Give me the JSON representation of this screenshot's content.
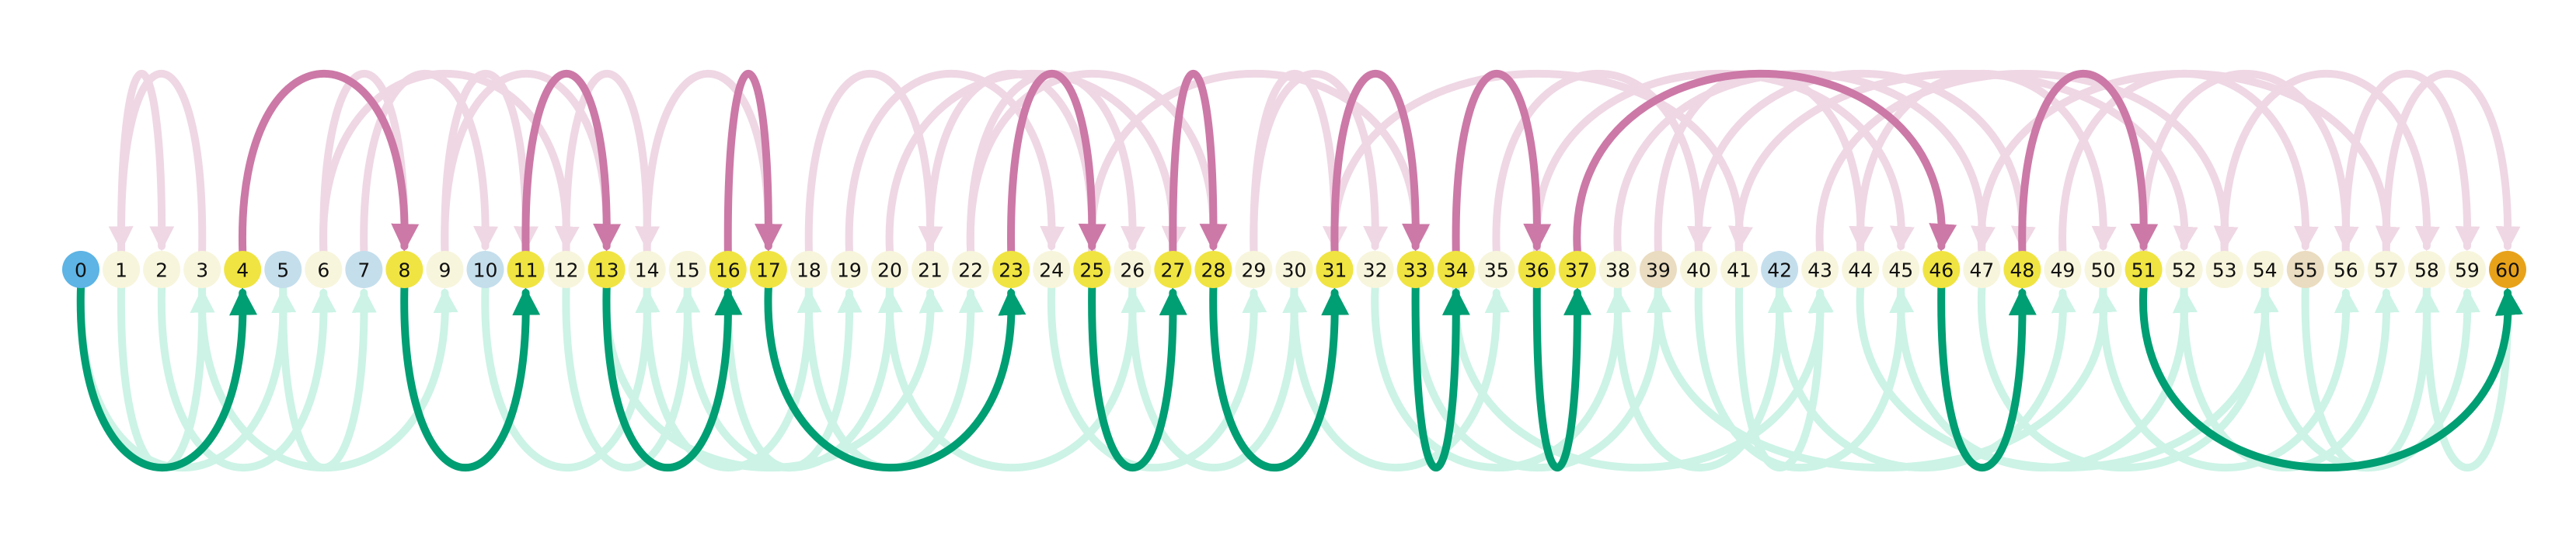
{
  "diagram": {
    "type": "arc-diagram",
    "nodes": [
      {
        "label": "0",
        "style": "start"
      },
      {
        "label": "1",
        "style": "plain"
      },
      {
        "label": "2",
        "style": "plain"
      },
      {
        "label": "3",
        "style": "plain"
      },
      {
        "label": "4",
        "style": "path"
      },
      {
        "label": "5",
        "style": "blue"
      },
      {
        "label": "6",
        "style": "plain"
      },
      {
        "label": "7",
        "style": "blue"
      },
      {
        "label": "8",
        "style": "path"
      },
      {
        "label": "9",
        "style": "plain"
      },
      {
        "label": "10",
        "style": "blue"
      },
      {
        "label": "11",
        "style": "path"
      },
      {
        "label": "12",
        "style": "plain"
      },
      {
        "label": "13",
        "style": "path"
      },
      {
        "label": "14",
        "style": "plain"
      },
      {
        "label": "15",
        "style": "plain"
      },
      {
        "label": "16",
        "style": "path"
      },
      {
        "label": "17",
        "style": "path"
      },
      {
        "label": "18",
        "style": "plain"
      },
      {
        "label": "19",
        "style": "plain"
      },
      {
        "label": "20",
        "style": "plain"
      },
      {
        "label": "21",
        "style": "plain"
      },
      {
        "label": "22",
        "style": "plain"
      },
      {
        "label": "23",
        "style": "path"
      },
      {
        "label": "24",
        "style": "plain"
      },
      {
        "label": "25",
        "style": "path"
      },
      {
        "label": "26",
        "style": "plain"
      },
      {
        "label": "27",
        "style": "path"
      },
      {
        "label": "28",
        "style": "path"
      },
      {
        "label": "29",
        "style": "plain"
      },
      {
        "label": "30",
        "style": "plain"
      },
      {
        "label": "31",
        "style": "path"
      },
      {
        "label": "32",
        "style": "plain"
      },
      {
        "label": "33",
        "style": "path"
      },
      {
        "label": "34",
        "style": "path"
      },
      {
        "label": "35",
        "style": "plain"
      },
      {
        "label": "36",
        "style": "path"
      },
      {
        "label": "37",
        "style": "path"
      },
      {
        "label": "38",
        "style": "plain"
      },
      {
        "label": "39",
        "style": "tan"
      },
      {
        "label": "40",
        "style": "plain"
      },
      {
        "label": "41",
        "style": "plain"
      },
      {
        "label": "42",
        "style": "blue"
      },
      {
        "label": "43",
        "style": "plain"
      },
      {
        "label": "44",
        "style": "plain"
      },
      {
        "label": "45",
        "style": "plain"
      },
      {
        "label": "46",
        "style": "path"
      },
      {
        "label": "47",
        "style": "plain"
      },
      {
        "label": "48",
        "style": "path"
      },
      {
        "label": "49",
        "style": "plain"
      },
      {
        "label": "50",
        "style": "plain"
      },
      {
        "label": "51",
        "style": "path"
      },
      {
        "label": "52",
        "style": "plain"
      },
      {
        "label": "53",
        "style": "plain"
      },
      {
        "label": "54",
        "style": "plain"
      },
      {
        "label": "55",
        "style": "tan"
      },
      {
        "label": "56",
        "style": "plain"
      },
      {
        "label": "57",
        "style": "plain"
      },
      {
        "label": "58",
        "style": "plain"
      },
      {
        "label": "59",
        "style": "plain"
      },
      {
        "label": "60",
        "style": "end"
      }
    ],
    "node_colors": {
      "start": "#5DB4E5",
      "end": "#E8A21A",
      "path": "#F0E442",
      "plain": "#F7F5DC",
      "blue": "#C4DEEC",
      "tan": "#EADCC0"
    },
    "edge_colors": {
      "path_above": "#CC79A7",
      "path_below": "#009E73",
      "bg_above": "#EFD7E4",
      "bg_below": "#CCF3E6"
    },
    "highlighted_edges": [
      {
        "from": 0,
        "to": 4,
        "side": "below"
      },
      {
        "from": 4,
        "to": 8,
        "side": "above"
      },
      {
        "from": 8,
        "to": 11,
        "side": "below"
      },
      {
        "from": 11,
        "to": 13,
        "side": "above"
      },
      {
        "from": 13,
        "to": 16,
        "side": "below"
      },
      {
        "from": 16,
        "to": 17,
        "side": "above"
      },
      {
        "from": 17,
        "to": 23,
        "side": "below"
      },
      {
        "from": 23,
        "to": 25,
        "side": "above"
      },
      {
        "from": 25,
        "to": 27,
        "side": "below"
      },
      {
        "from": 27,
        "to": 28,
        "side": "above"
      },
      {
        "from": 28,
        "to": 31,
        "side": "below"
      },
      {
        "from": 31,
        "to": 33,
        "side": "above"
      },
      {
        "from": 33,
        "to": 34,
        "side": "below"
      },
      {
        "from": 34,
        "to": 36,
        "side": "above"
      },
      {
        "from": 36,
        "to": 37,
        "side": "below"
      },
      {
        "from": 37,
        "to": 46,
        "side": "above"
      },
      {
        "from": 46,
        "to": 48,
        "side": "below"
      },
      {
        "from": 48,
        "to": 51,
        "side": "above"
      },
      {
        "from": 51,
        "to": 60,
        "side": "below"
      }
    ],
    "background_edges": [
      {
        "from": 1,
        "to": 3,
        "side": "below"
      },
      {
        "from": 0,
        "to": 5,
        "side": "below"
      },
      {
        "from": 1,
        "to": 2,
        "side": "above"
      },
      {
        "from": 3,
        "to": 1,
        "side": "above"
      },
      {
        "from": 2,
        "to": 6,
        "side": "below"
      },
      {
        "from": 5,
        "to": 7,
        "side": "below"
      },
      {
        "from": 3,
        "to": 9,
        "side": "below"
      },
      {
        "from": 6,
        "to": 8,
        "side": "above"
      },
      {
        "from": 7,
        "to": 10,
        "side": "above"
      },
      {
        "from": 9,
        "to": 11,
        "side": "above"
      },
      {
        "from": 6,
        "to": 12,
        "side": "above"
      },
      {
        "from": 9,
        "to": 13,
        "side": "above"
      },
      {
        "from": 10,
        "to": 14,
        "side": "below"
      },
      {
        "from": 12,
        "to": 15,
        "side": "below"
      },
      {
        "from": 12,
        "to": 14,
        "side": "above"
      },
      {
        "from": 14,
        "to": 18,
        "side": "below"
      },
      {
        "from": 15,
        "to": 20,
        "side": "below"
      },
      {
        "from": 14,
        "to": 17,
        "side": "above"
      },
      {
        "from": 16,
        "to": 19,
        "side": "below"
      },
      {
        "from": 18,
        "to": 21,
        "side": "above"
      },
      {
        "from": 18,
        "to": 22,
        "side": "below"
      },
      {
        "from": 19,
        "to": 24,
        "side": "above"
      },
      {
        "from": 20,
        "to": 26,
        "side": "below"
      },
      {
        "from": 21,
        "to": 25,
        "side": "above"
      },
      {
        "from": 22,
        "to": 26,
        "side": "above"
      },
      {
        "from": 24,
        "to": 29,
        "side": "below"
      },
      {
        "from": 22,
        "to": 28,
        "side": "above"
      },
      {
        "from": 26,
        "to": 30,
        "side": "below"
      },
      {
        "from": 29,
        "to": 32,
        "side": "above"
      },
      {
        "from": 29,
        "to": 31,
        "side": "above"
      },
      {
        "from": 30,
        "to": 35,
        "side": "below"
      },
      {
        "from": 32,
        "to": 38,
        "side": "below"
      },
      {
        "from": 35,
        "to": 40,
        "side": "above"
      },
      {
        "from": 38,
        "to": 42,
        "side": "below"
      },
      {
        "from": 39,
        "to": 44,
        "side": "above"
      },
      {
        "from": 40,
        "to": 45,
        "side": "below"
      },
      {
        "from": 41,
        "to": 43,
        "side": "below"
      },
      {
        "from": 38,
        "to": 47,
        "side": "above"
      },
      {
        "from": 42,
        "to": 49,
        "side": "below"
      },
      {
        "from": 44,
        "to": 50,
        "side": "above"
      },
      {
        "from": 45,
        "to": 52,
        "side": "below"
      },
      {
        "from": 43,
        "to": 53,
        "side": "above"
      },
      {
        "from": 47,
        "to": 54,
        "side": "below"
      },
      {
        "from": 49,
        "to": 55,
        "side": "above"
      },
      {
        "from": 50,
        "to": 56,
        "side": "below"
      },
      {
        "from": 52,
        "to": 57,
        "side": "below"
      },
      {
        "from": 53,
        "to": 58,
        "side": "above"
      },
      {
        "from": 54,
        "to": 59,
        "side": "below"
      },
      {
        "from": 55,
        "to": 58,
        "side": "below"
      },
      {
        "from": 56,
        "to": 59,
        "side": "above"
      },
      {
        "from": 57,
        "to": 60,
        "side": "above"
      },
      {
        "from": 58,
        "to": 60,
        "side": "below"
      },
      {
        "from": 41,
        "to": 52,
        "side": "above"
      },
      {
        "from": 39,
        "to": 50,
        "side": "below"
      },
      {
        "from": 40,
        "to": 48,
        "side": "above"
      },
      {
        "from": 44,
        "to": 54,
        "side": "below"
      },
      {
        "from": 36,
        "to": 45,
        "side": "above"
      },
      {
        "from": 33,
        "to": 39,
        "side": "below"
      },
      {
        "from": 25,
        "to": 33,
        "side": "above"
      },
      {
        "from": 20,
        "to": 27,
        "side": "above"
      },
      {
        "from": 13,
        "to": 21,
        "side": "below"
      },
      {
        "from": 31,
        "to": 41,
        "side": "above"
      },
      {
        "from": 34,
        "to": 43,
        "side": "below"
      },
      {
        "from": 47,
        "to": 57,
        "side": "above"
      },
      {
        "from": 51,
        "to": 56,
        "side": "above"
      }
    ]
  }
}
